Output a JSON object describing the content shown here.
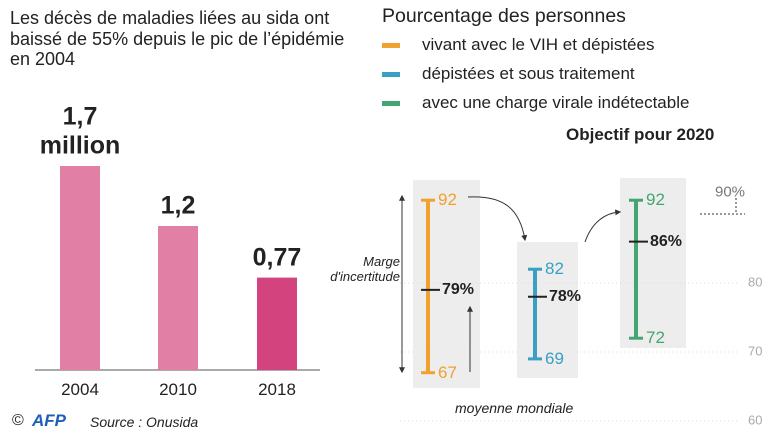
{
  "chart_data": [
    {
      "type": "bar",
      "title": "Les décès de maladies liées au sida ont baissé de 55% depuis le pic de l’épidémie en 2004",
      "categories": [
        "2004",
        "2010",
        "2018"
      ],
      "values": [
        1.7,
        1.2,
        0.77
      ],
      "value_labels": [
        "1,7 million",
        "1,2",
        "0,77"
      ],
      "colors": [
        "#e27fa5",
        "#e27fa5",
        "#d3437e"
      ]
    },
    {
      "type": "errorbar",
      "title": "Pourcentage des personnes",
      "subtitle": "Objectif pour 2020",
      "series": [
        {
          "name": "vivant avec le VIH et dépistées",
          "color": "#f0a12e",
          "value": 79,
          "low": 67,
          "high": 92,
          "value_label": "79%"
        },
        {
          "name": "dépistées et sous traitement",
          "color": "#3a9fc2",
          "value": 78,
          "low": 69,
          "high": 82,
          "value_label": "78%"
        },
        {
          "name": "avec une charge virale indétectable",
          "color": "#45a572",
          "value": 86,
          "low": 72,
          "high": 92,
          "value_label": "86%"
        }
      ],
      "ylim": [
        60,
        100
      ],
      "yticks": [
        60,
        70,
        80
      ],
      "target": 90,
      "target_label": "90%",
      "annotations": [
        "Marge d'incertitude",
        "moyenne mondiale"
      ]
    }
  ],
  "footer": {
    "credit": "©",
    "logo": "AFP",
    "source": "Source : Onusida"
  }
}
